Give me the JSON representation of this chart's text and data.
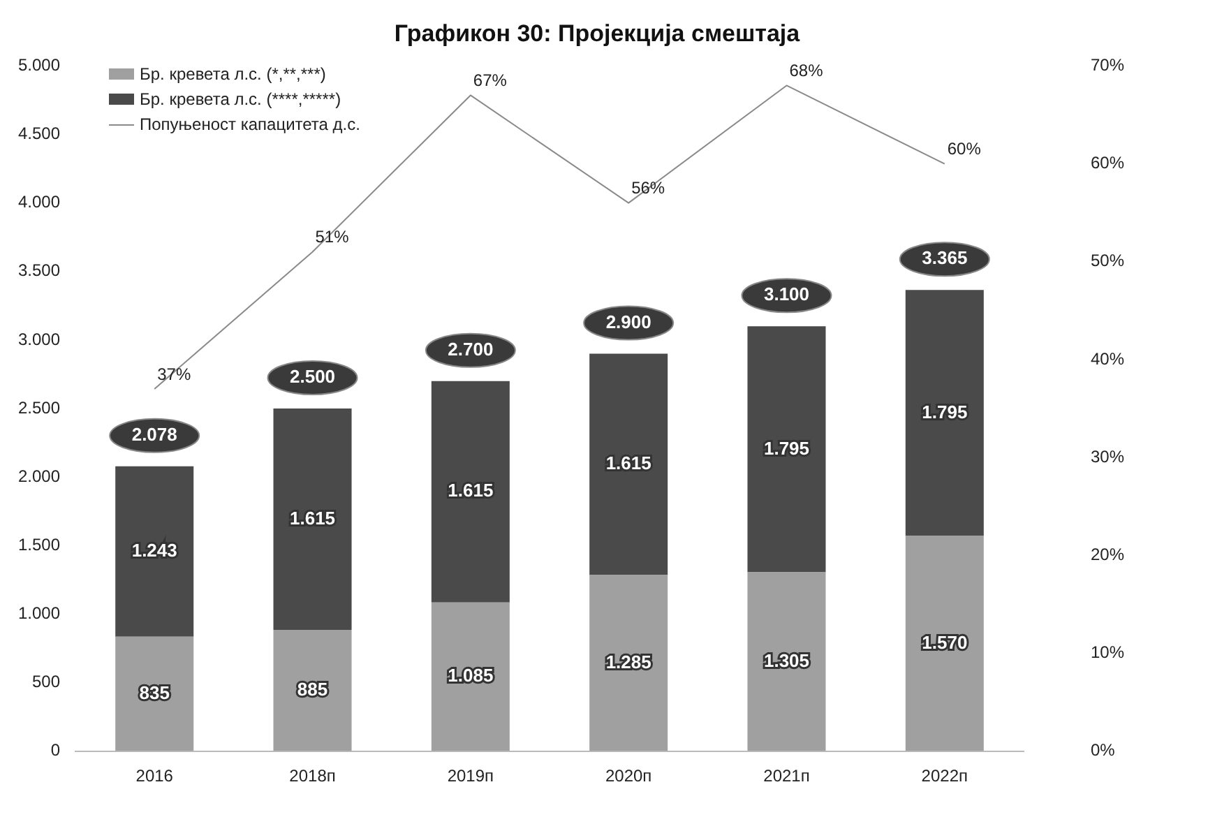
{
  "chart_data": {
    "type": "bar",
    "title": "Графикон 30: Пројекција смештаја",
    "categories": [
      "2016",
      "2018п",
      "2019п",
      "2020п",
      "2021п",
      "2022п"
    ],
    "stacked": true,
    "series": [
      {
        "name": "Бр. кревета л.с. (*,**,***)",
        "color": "#a0a0a0",
        "values": [
          835,
          885,
          1085,
          1285,
          1305,
          1570
        ],
        "value_labels": [
          "835",
          "885",
          "1.085",
          "1.285",
          "1.305",
          "1.570"
        ]
      },
      {
        "name": "Бр. кревета л.с. (****,*****)",
        "color": "#4a4a4a",
        "values": [
          1243,
          1615,
          1615,
          1615,
          1795,
          1795
        ],
        "value_labels": [
          "1.243",
          "1.615",
          "1.615",
          "1.615",
          "1.795",
          "1.795"
        ]
      },
      {
        "name": "Попуњеност капацитета д.с.",
        "type": "line",
        "axis": "y2",
        "color": "#8a8a8a",
        "values": [
          37,
          51,
          67,
          56,
          68,
          60
        ],
        "value_labels": [
          "37%",
          "51%",
          "67%",
          "56%",
          "68%",
          "60%"
        ]
      }
    ],
    "totals": [
      "2.078",
      "2.500",
      "2.700",
      "2.900",
      "3.100",
      "3.365"
    ],
    "ylim": [
      0,
      5000
    ],
    "yticks": [
      {
        "value": 0,
        "label": "0"
      },
      {
        "value": 500,
        "label": "500"
      },
      {
        "value": 1000,
        "label": "1.000"
      },
      {
        "value": 1500,
        "label": "1.500"
      },
      {
        "value": 2000,
        "label": "2.000"
      },
      {
        "value": 2500,
        "label": "2.500"
      },
      {
        "value": 3000,
        "label": "3.000"
      },
      {
        "value": 3500,
        "label": "3.500"
      },
      {
        "value": 4000,
        "label": "4.000"
      },
      {
        "value": 4500,
        "label": "4.500"
      },
      {
        "value": 5000,
        "label": "5.000"
      }
    ],
    "y2lim": [
      0,
      70
    ],
    "y2ticks": [
      {
        "value": 0,
        "label": "0%"
      },
      {
        "value": 10,
        "label": "10%"
      },
      {
        "value": 20,
        "label": "20%"
      },
      {
        "value": 30,
        "label": "30%"
      },
      {
        "value": 40,
        "label": "40%"
      },
      {
        "value": 50,
        "label": "50%"
      },
      {
        "value": 60,
        "label": "60%"
      },
      {
        "value": 70,
        "label": "70%"
      }
    ],
    "grid": false,
    "legend": "top left",
    "marker": "none",
    "line_style": "solid"
  }
}
